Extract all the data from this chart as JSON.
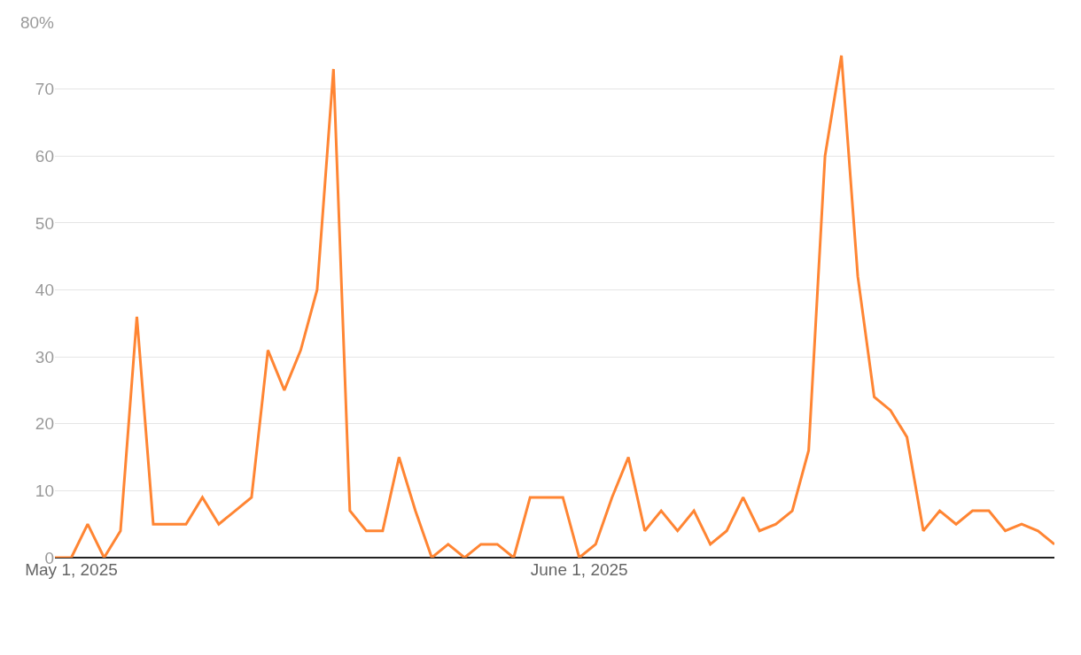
{
  "chart_data": {
    "type": "line",
    "x": [
      "2025-04-30",
      "2025-05-01",
      "2025-05-02",
      "2025-05-03",
      "2025-05-04",
      "2025-05-05",
      "2025-05-06",
      "2025-05-07",
      "2025-05-08",
      "2025-05-09",
      "2025-05-10",
      "2025-05-11",
      "2025-05-12",
      "2025-05-13",
      "2025-05-14",
      "2025-05-15",
      "2025-05-16",
      "2025-05-17",
      "2025-05-18",
      "2025-05-19",
      "2025-05-20",
      "2025-05-21",
      "2025-05-22",
      "2025-05-23",
      "2025-05-24",
      "2025-05-25",
      "2025-05-26",
      "2025-05-27",
      "2025-05-28",
      "2025-05-29",
      "2025-05-30",
      "2025-05-31",
      "2025-06-01",
      "2025-06-02",
      "2025-06-03",
      "2025-06-04",
      "2025-06-05",
      "2025-06-06",
      "2025-06-07",
      "2025-06-08",
      "2025-06-09",
      "2025-06-10",
      "2025-06-11",
      "2025-06-12",
      "2025-06-13",
      "2025-06-14",
      "2025-06-15",
      "2025-06-16",
      "2025-06-17",
      "2025-06-18",
      "2025-06-19",
      "2025-06-20",
      "2025-06-21",
      "2025-06-22",
      "2025-06-23",
      "2025-06-24",
      "2025-06-25",
      "2025-06-26",
      "2025-06-27",
      "2025-06-28",
      "2025-06-29",
      "2025-06-30"
    ],
    "series": [
      {
        "color": "#ff8533",
        "values": [
          0,
          0,
          5,
          0,
          4,
          36,
          5,
          5,
          5,
          9,
          5,
          7,
          9,
          31,
          25,
          31,
          40,
          73,
          7,
          4,
          4,
          15,
          7,
          0,
          2,
          0,
          2,
          2,
          0,
          9,
          9,
          9,
          0,
          2,
          9,
          15,
          4,
          7,
          4,
          7,
          2,
          4,
          9,
          4,
          5,
          7,
          16,
          60,
          75,
          42,
          24,
          22,
          18,
          4,
          7,
          5,
          7,
          7,
          4,
          5,
          4,
          2
        ]
      }
    ],
    "xlim": [
      "2025-04-30",
      "2025-06-30"
    ],
    "xticks": [
      {
        "value": "2025-05-01",
        "label": "May 1, 2025"
      },
      {
        "value": "2025-06-01",
        "label": "June 1, 2025"
      }
    ],
    "ylim": [
      0,
      80
    ],
    "yticks": [
      0,
      10,
      20,
      30,
      40,
      50,
      60,
      70,
      {
        "value": 80,
        "label": "80%"
      }
    ],
    "grid": "y",
    "marker": "none",
    "line_style": "solid"
  }
}
